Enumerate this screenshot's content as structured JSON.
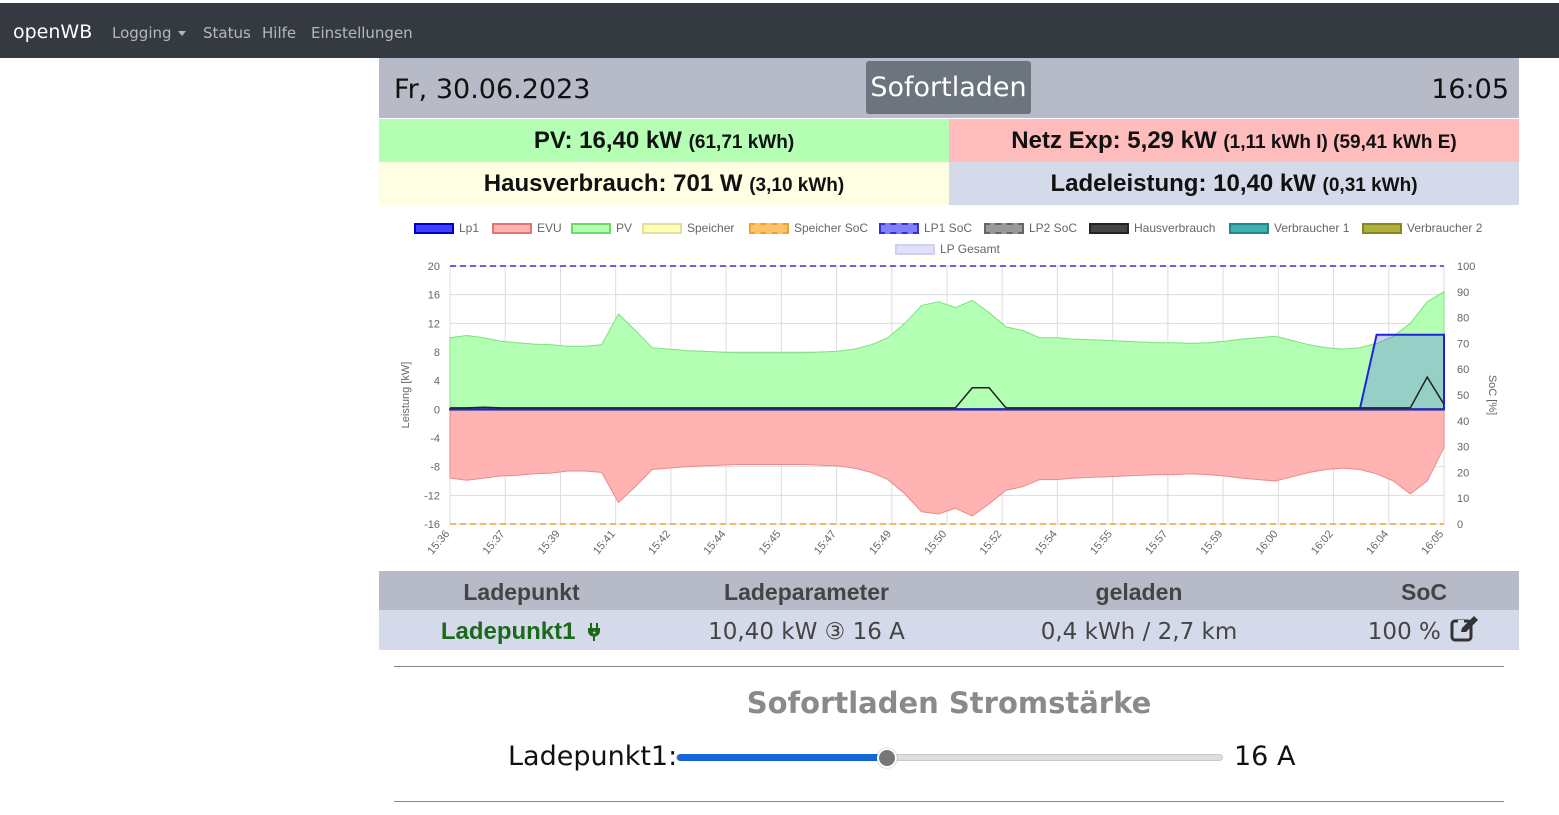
{
  "navbar": {
    "brand": "openWB",
    "items": [
      "Logging",
      "Status",
      "Hilfe",
      "Einstellungen"
    ]
  },
  "header": {
    "date": "Fr, 30.06.2023",
    "mode": "Sofortladen",
    "time": "16:05"
  },
  "stats": {
    "pv": {
      "label": "PV: 16,40 kW",
      "detail": "(61,71 kWh)"
    },
    "netz": {
      "label": "Netz Exp: 5,29 kW",
      "detail": "(1,11 kWh I) (59,41 kWh E)"
    },
    "haus": {
      "label": "Hausverbrauch: 701 W",
      "detail": "(3,10 kWh)"
    },
    "lade": {
      "label": "Ladeleistung: 10,40 kW",
      "detail": "(0,31 kWh)"
    }
  },
  "chart_data": {
    "type": "line",
    "ylabel": "Leistung [kW]",
    "y2label": "SoC [%]",
    "ylim": [
      -16,
      20
    ],
    "y2lim": [
      0,
      100
    ],
    "yticks": [
      "20",
      "16",
      "12",
      "8",
      "4",
      "0",
      "-4",
      "-8",
      "-12",
      "-16"
    ],
    "y2ticks": [
      "100",
      "90",
      "80",
      "70",
      "60",
      "50",
      "40",
      "30",
      "20",
      "10",
      "0"
    ],
    "xticks": [
      "15:36",
      "15:37",
      "15:39",
      "15:41",
      "15:42",
      "15:44",
      "15:45",
      "15:47",
      "15:49",
      "15:50",
      "15:52",
      "15:54",
      "15:55",
      "15:57",
      "15:59",
      "16:00",
      "16:02",
      "16:04",
      "16:05"
    ],
    "legend": [
      {
        "name": "Lp1",
        "fill": "#4040ff",
        "stroke": "#0000cc",
        "dash": false
      },
      {
        "name": "EVU",
        "fill": "#ffb3b3",
        "stroke": "#e57373",
        "dash": false
      },
      {
        "name": "PV",
        "fill": "#b3ffb3",
        "stroke": "#66dd66",
        "dash": false
      },
      {
        "name": "Speicher",
        "fill": "#ffffb3",
        "stroke": "#e0e0a0",
        "dash": false
      },
      {
        "name": "Speicher SoC",
        "fill": "#ffc266",
        "stroke": "#f0a030",
        "dash": true
      },
      {
        "name": "LP1 SoC",
        "fill": "#8080ff",
        "stroke": "#3333cc",
        "dash": true
      },
      {
        "name": "LP2 SoC",
        "fill": "#999999",
        "stroke": "#666666",
        "dash": true
      },
      {
        "name": "Hausverbrauch",
        "fill": "#444444",
        "stroke": "#222222",
        "dash": false
      },
      {
        "name": "Verbraucher 1",
        "fill": "#40b0b0",
        "stroke": "#208888",
        "dash": false
      },
      {
        "name": "Verbraucher 2",
        "fill": "#b0b040",
        "stroke": "#888820",
        "dash": false
      },
      {
        "name": "LP Gesamt",
        "fill": "#e0e0f8",
        "stroke": "#d0d0ee",
        "dash": false
      }
    ],
    "x_count": 60,
    "series": [
      {
        "name": "PV",
        "values": [
          10,
          10.3,
          10,
          9.5,
          9.3,
          9.1,
          9,
          8.8,
          8.8,
          9,
          13.3,
          11,
          8.6,
          8.4,
          8.2,
          8.1,
          8,
          7.9,
          7.9,
          7.9,
          7.9,
          7.9,
          8,
          8.1,
          8.4,
          9,
          10,
          12,
          14.5,
          15,
          14.2,
          15.2,
          13.5,
          11.5,
          11,
          10,
          10,
          9.8,
          9.7,
          9.6,
          9.5,
          9.4,
          9.3,
          9.3,
          9.2,
          9.3,
          9.5,
          9.8,
          10,
          10.2,
          9.6,
          9,
          8.6,
          8.4,
          8.6,
          9.2,
          10.2,
          12,
          15,
          16.4
        ]
      },
      {
        "name": "EVU",
        "values": [
          -9.6,
          -9.9,
          -9.6,
          -9.3,
          -9.2,
          -9,
          -8.9,
          -8.6,
          -8.6,
          -8.8,
          -13,
          -10.8,
          -8.4,
          -8.2,
          -8,
          -7.9,
          -7.8,
          -7.7,
          -7.7,
          -7.7,
          -7.7,
          -7.7,
          -7.8,
          -7.9,
          -8.2,
          -8.8,
          -9.8,
          -11.8,
          -14.3,
          -14.6,
          -13.8,
          -14.9,
          -13.2,
          -11.3,
          -10.8,
          -9.8,
          -9.8,
          -9.6,
          -9.5,
          -9.4,
          -9.3,
          -9.2,
          -9.1,
          -9.1,
          -9,
          -9.1,
          -9.3,
          -9.6,
          -9.8,
          -10,
          -9.4,
          -8.8,
          -8.4,
          -8.2,
          -8.4,
          -9,
          -10,
          -11.8,
          -10,
          -5.3
        ]
      },
      {
        "name": "Hausverbrauch",
        "values": [
          0.2,
          0.2,
          0.3,
          0.2,
          0.2,
          0.2,
          0.2,
          0.2,
          0.2,
          0.2,
          0.2,
          0.2,
          0.2,
          0.2,
          0.2,
          0.2,
          0.2,
          0.2,
          0.2,
          0.2,
          0.2,
          0.2,
          0.2,
          0.2,
          0.2,
          0.2,
          0.2,
          0.2,
          0.2,
          0.2,
          0.2,
          3,
          3,
          0.2,
          0.2,
          0.2,
          0.2,
          0.2,
          0.2,
          0.2,
          0.2,
          0.2,
          0.2,
          0.2,
          0.2,
          0.2,
          0.2,
          0.2,
          0.2,
          0.2,
          0.2,
          0.2,
          0.2,
          0.2,
          0.2,
          0.2,
          0.2,
          0.2,
          4.5,
          0.7
        ]
      },
      {
        "name": "Lp1",
        "values": [
          0,
          0,
          0,
          0,
          0,
          0,
          0,
          0,
          0,
          0,
          0,
          0,
          0,
          0,
          0,
          0,
          0,
          0,
          0,
          0,
          0,
          0,
          0,
          0,
          0,
          0,
          0,
          0,
          0,
          0,
          0,
          0,
          0,
          0,
          0,
          0,
          0,
          0,
          0,
          0,
          0,
          0,
          0,
          0,
          0,
          0,
          0,
          0,
          0,
          0,
          0,
          0,
          0,
          0,
          0,
          10.4,
          10.4,
          10.4,
          10.4,
          10.4
        ]
      },
      {
        "name": "LP1 SoC",
        "values": [
          100,
          100,
          100,
          100,
          100,
          100,
          100,
          100,
          100,
          100,
          100,
          100,
          100,
          100,
          100,
          100,
          100,
          100,
          100,
          100,
          100,
          100,
          100,
          100,
          100,
          100,
          100,
          100,
          100,
          100,
          100,
          100,
          100,
          100,
          100,
          100,
          100,
          100,
          100,
          100,
          100,
          100,
          100,
          100,
          100,
          100,
          100,
          100,
          100,
          100,
          100,
          100,
          100,
          100,
          100,
          100,
          100,
          100,
          100,
          100
        ]
      }
    ]
  },
  "table": {
    "headers": [
      "Ladepunkt",
      "Ladeparameter",
      "geladen",
      "SoC"
    ],
    "row": {
      "name": "Ladepunkt1",
      "params": "10,40 kW ③ 16 A",
      "charged": "0,4 kWh / 2,7 km",
      "soc": "100 %"
    }
  },
  "sofortladen": {
    "title": "Sofortladen Stromstärke",
    "slider_label": "Ladepunkt1:",
    "value_text": "16 A",
    "value": 16,
    "min": 6,
    "max": 32
  }
}
